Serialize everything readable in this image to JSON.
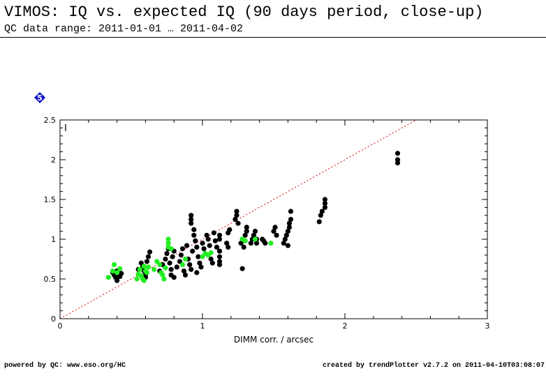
{
  "header": {
    "title": "VIMOS: IQ vs. expected IQ (90 days period, close-up)",
    "subtitle": "QC data range: 2011-01-01 … 2011-04-02"
  },
  "badge": {
    "label": "5",
    "icon": "diamond-badge-icon",
    "color": "#1010c8"
  },
  "footer": {
    "powered": "powered by QC: www.eso.org/HC",
    "created": "created by trendPlotter v2.7.2 on 2011-04-10T03:08:07"
  },
  "chart_data": {
    "type": "scatter",
    "title": "",
    "panel_label": "I",
    "xlabel": "DIMM corr. / arcsec",
    "ylabel": "",
    "xlim": [
      0,
      3
    ],
    "ylim": [
      0,
      2.5
    ],
    "xticks": [
      0,
      1,
      2,
      3
    ],
    "yticks": [
      0,
      0.5,
      1,
      1.5,
      2,
      2.5
    ],
    "xtick_labels": [
      "0",
      "1",
      "2",
      "3"
    ],
    "ytick_labels": [
      "0",
      "0.5",
      "1",
      "1.5",
      "2",
      "2.5"
    ],
    "grid": false,
    "reference_line": {
      "style": "dotted",
      "color": "#dd0000",
      "slope": 1,
      "intercept": 0
    },
    "series": [
      {
        "color": "#000000",
        "points": [
          [
            0.37,
            0.58
          ],
          [
            0.38,
            0.55
          ],
          [
            0.39,
            0.52
          ],
          [
            0.4,
            0.6
          ],
          [
            0.41,
            0.56
          ],
          [
            0.42,
            0.53
          ],
          [
            0.43,
            0.57
          ],
          [
            0.4,
            0.48
          ],
          [
            0.55,
            0.62
          ],
          [
            0.57,
            0.7
          ],
          [
            0.58,
            0.65
          ],
          [
            0.59,
            0.6
          ],
          [
            0.6,
            0.55
          ],
          [
            0.61,
            0.72
          ],
          [
            0.62,
            0.78
          ],
          [
            0.63,
            0.84
          ],
          [
            0.6,
            0.52
          ],
          [
            0.7,
            0.6
          ],
          [
            0.72,
            0.68
          ],
          [
            0.74,
            0.75
          ],
          [
            0.75,
            0.82
          ],
          [
            0.76,
            0.88
          ],
          [
            0.77,
            0.7
          ],
          [
            0.78,
            0.62
          ],
          [
            0.79,
            0.78
          ],
          [
            0.8,
            0.85
          ],
          [
            0.78,
            0.55
          ],
          [
            0.8,
            0.52
          ],
          [
            0.82,
            0.65
          ],
          [
            0.84,
            0.72
          ],
          [
            0.85,
            0.8
          ],
          [
            0.86,
            0.88
          ],
          [
            0.87,
            0.6
          ],
          [
            0.88,
            0.55
          ],
          [
            0.89,
            0.92
          ],
          [
            0.9,
            0.75
          ],
          [
            0.91,
            0.68
          ],
          [
            0.92,
            0.62
          ],
          [
            0.93,
            0.85
          ],
          [
            0.94,
            1.05
          ],
          [
            0.95,
            0.98
          ],
          [
            0.96,
            0.9
          ],
          [
            0.97,
            0.78
          ],
          [
            0.98,
            0.7
          ],
          [
            0.99,
            0.65
          ],
          [
            0.94,
            1.12
          ],
          [
            0.96,
            0.58
          ],
          [
            0.92,
            1.2
          ],
          [
            0.92,
            1.25
          ],
          [
            0.92,
            1.3
          ],
          [
            1.0,
            0.95
          ],
          [
            1.01,
            0.88
          ],
          [
            1.02,
            0.82
          ],
          [
            1.03,
            1.05
          ],
          [
            1.04,
            1.0
          ],
          [
            1.05,
            0.92
          ],
          [
            1.06,
            0.75
          ],
          [
            1.07,
            0.7
          ],
          [
            1.08,
            1.08
          ],
          [
            1.09,
            0.98
          ],
          [
            1.1,
            0.9
          ],
          [
            1.12,
            1.05
          ],
          [
            1.12,
            0.85
          ],
          [
            1.12,
            0.78
          ],
          [
            1.12,
            0.72
          ],
          [
            1.12,
            0.68
          ],
          [
            1.12,
            1.0
          ],
          [
            1.17,
            0.95
          ],
          [
            1.18,
            1.08
          ],
          [
            1.19,
            1.12
          ],
          [
            1.18,
            0.9
          ],
          [
            1.23,
            1.25
          ],
          [
            1.24,
            1.3
          ],
          [
            1.24,
            1.35
          ],
          [
            1.25,
            1.2
          ],
          [
            1.27,
            0.95
          ],
          [
            1.28,
            1.0
          ],
          [
            1.29,
            0.9
          ],
          [
            1.3,
            1.05
          ],
          [
            1.31,
            1.1
          ],
          [
            1.31,
            1.15
          ],
          [
            1.28,
            0.63
          ],
          [
            1.34,
            0.95
          ],
          [
            1.35,
            1.0
          ],
          [
            1.36,
            1.05
          ],
          [
            1.37,
            1.1
          ],
          [
            1.38,
            1.0
          ],
          [
            1.38,
            0.95
          ],
          [
            1.42,
            1.0
          ],
          [
            1.43,
            0.98
          ],
          [
            1.44,
            0.95
          ],
          [
            1.5,
            1.1
          ],
          [
            1.51,
            1.15
          ],
          [
            1.52,
            1.05
          ],
          [
            1.57,
            0.95
          ],
          [
            1.58,
            1.0
          ],
          [
            1.59,
            1.05
          ],
          [
            1.6,
            1.1
          ],
          [
            1.61,
            1.15
          ],
          [
            1.61,
            1.2
          ],
          [
            1.62,
            1.25
          ],
          [
            1.62,
            1.35
          ],
          [
            1.6,
            0.92
          ],
          [
            1.82,
            1.22
          ],
          [
            1.83,
            1.3
          ],
          [
            1.84,
            1.35
          ],
          [
            1.86,
            1.4
          ],
          [
            1.86,
            1.45
          ],
          [
            1.86,
            1.5
          ],
          [
            2.37,
            2.08
          ],
          [
            2.37,
            2.0
          ],
          [
            2.37,
            1.96
          ]
        ]
      },
      {
        "color": "#22ee22",
        "points": [
          [
            0.34,
            0.52
          ],
          [
            0.37,
            0.6
          ],
          [
            0.38,
            0.68
          ],
          [
            0.4,
            0.58
          ],
          [
            0.42,
            0.63
          ],
          [
            0.54,
            0.5
          ],
          [
            0.55,
            0.56
          ],
          [
            0.56,
            0.62
          ],
          [
            0.57,
            0.54
          ],
          [
            0.58,
            0.5
          ],
          [
            0.59,
            0.66
          ],
          [
            0.6,
            0.6
          ],
          [
            0.61,
            0.58
          ],
          [
            0.62,
            0.65
          ],
          [
            0.59,
            0.48
          ],
          [
            0.66,
            0.62
          ],
          [
            0.68,
            0.72
          ],
          [
            0.7,
            0.68
          ],
          [
            0.71,
            0.58
          ],
          [
            0.72,
            0.55
          ],
          [
            0.73,
            0.5
          ],
          [
            0.74,
            0.64
          ],
          [
            0.76,
            0.9
          ],
          [
            0.76,
            0.95
          ],
          [
            0.76,
            1.0
          ],
          [
            0.78,
            0.88
          ],
          [
            0.86,
            0.68
          ],
          [
            0.88,
            0.75
          ],
          [
            1.0,
            0.78
          ],
          [
            1.02,
            0.82
          ],
          [
            1.04,
            0.8
          ],
          [
            1.06,
            0.83
          ],
          [
            1.28,
            1.0
          ],
          [
            1.3,
            0.98
          ],
          [
            1.37,
            1.0
          ],
          [
            1.48,
            0.95
          ]
        ]
      }
    ]
  }
}
